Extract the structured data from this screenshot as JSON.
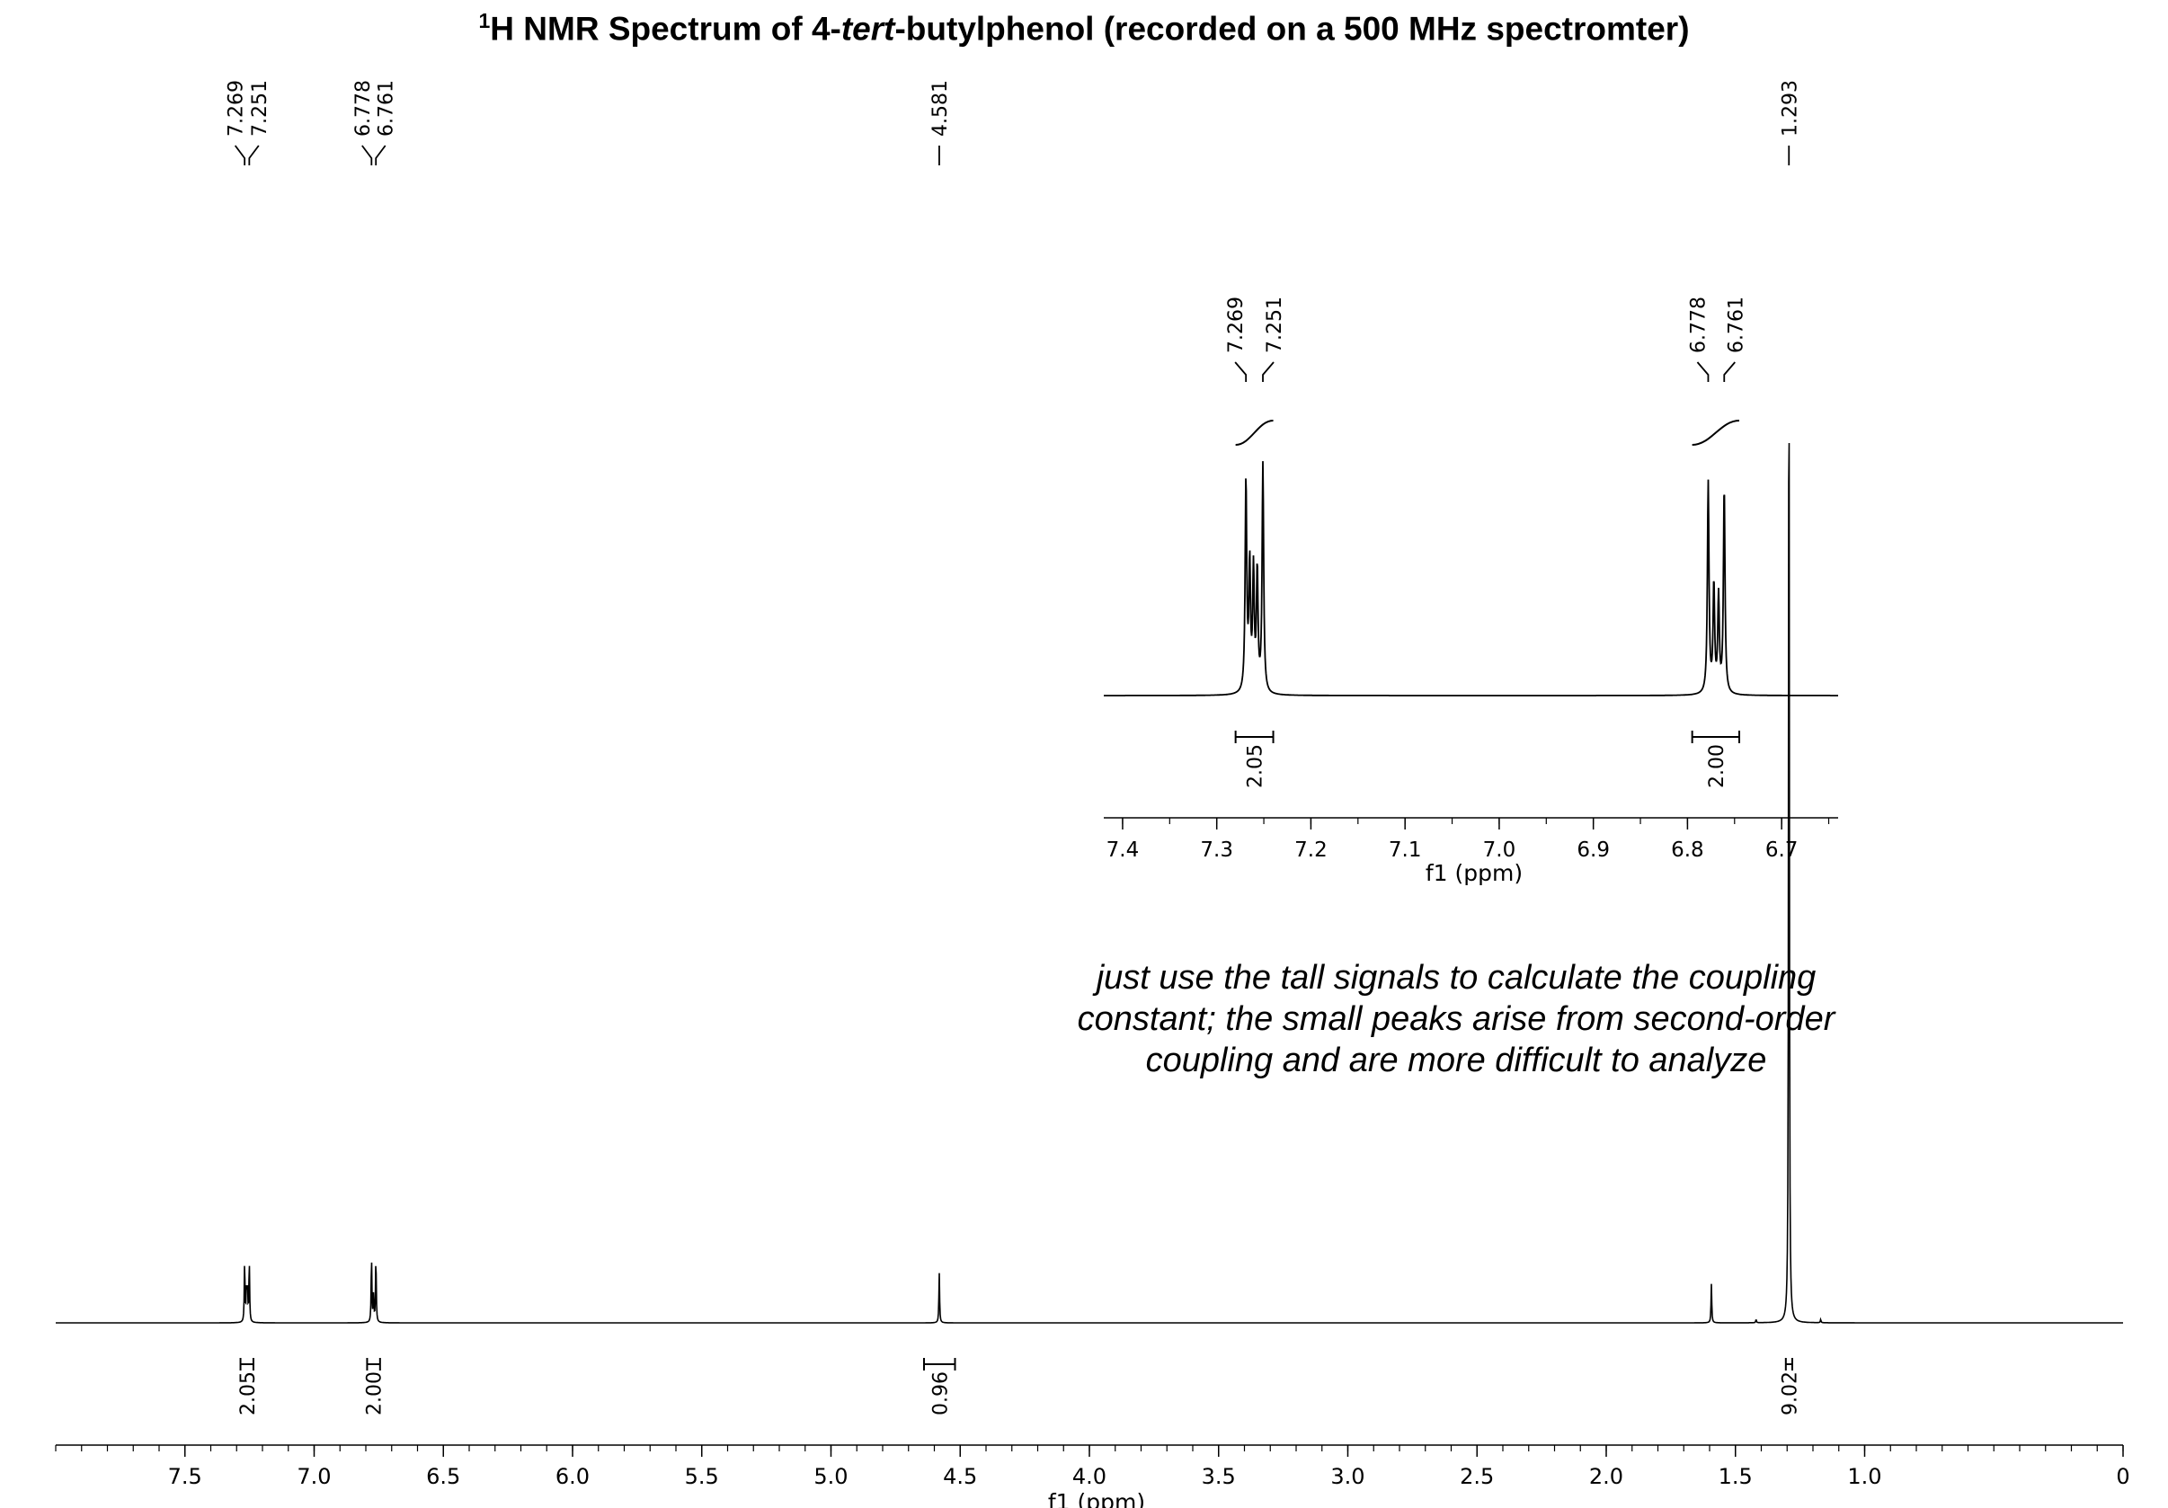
{
  "title": {
    "sup": "1",
    "pre": "H NMR Spectrum of 4-",
    "italic": "tert",
    "post": "-butylphenol (recorded on a 500 MHz spectromter)"
  },
  "note_lines": [
    "just use the tall signals to calculate the coupling",
    "constant; the small peaks arise from second-order",
    "coupling and are more difficult to analyze"
  ],
  "chart_data": [
    {
      "type": "line",
      "role": "main-spectrum",
      "xlabel": "f1 (ppm)",
      "xlim": [
        8.0,
        0.0
      ],
      "x_ticks": [
        {
          "value": 7.5,
          "label": "7.5"
        },
        {
          "value": 7.0,
          "label": "7.0"
        },
        {
          "value": 6.5,
          "label": "6.5"
        },
        {
          "value": 6.0,
          "label": "6.0"
        },
        {
          "value": 5.5,
          "label": "5.5"
        },
        {
          "value": 5.0,
          "label": "5.0"
        },
        {
          "value": 4.5,
          "label": "4.5"
        },
        {
          "value": 4.0,
          "label": "4.0"
        },
        {
          "value": 3.5,
          "label": "3.5"
        },
        {
          "value": 3.0,
          "label": "3.0"
        },
        {
          "value": 2.5,
          "label": "2.5"
        },
        {
          "value": 2.0,
          "label": "2.0"
        },
        {
          "value": 1.5,
          "label": "1.5"
        },
        {
          "value": 1.0,
          "label": "1.0"
        },
        {
          "value": 0.0,
          "label": "0"
        }
      ],
      "peaks": [
        {
          "ppm": 7.269,
          "height": 0.055
        },
        {
          "ppm": 7.251,
          "height": 0.055
        },
        {
          "ppm": 7.262,
          "height": 0.03
        },
        {
          "ppm": 7.258,
          "height": 0.03
        },
        {
          "ppm": 6.778,
          "height": 0.06
        },
        {
          "ppm": 6.761,
          "height": 0.06
        },
        {
          "ppm": 6.77,
          "height": 0.025
        },
        {
          "ppm": 4.581,
          "height": 0.045
        },
        {
          "ppm": 1.593,
          "height": 0.035
        },
        {
          "ppm": 1.42,
          "height": 0.003
        },
        {
          "ppm": 1.293,
          "height": 1.0
        },
        {
          "ppm": 1.17,
          "height": 0.003
        }
      ],
      "peak_labels": [
        {
          "group": [
            {
              "ppm": 7.269,
              "label": "7.269"
            },
            {
              "ppm": 7.251,
              "label": "7.251"
            }
          ]
        },
        {
          "group": [
            {
              "ppm": 6.778,
              "label": "6.778"
            },
            {
              "ppm": 6.761,
              "label": "6.761"
            }
          ]
        },
        {
          "group": [
            {
              "ppm": 4.581,
              "label": "4.581"
            }
          ]
        },
        {
          "group": [
            {
              "ppm": 1.293,
              "label": "1.293"
            }
          ]
        }
      ],
      "integrals": [
        {
          "from": 7.285,
          "to": 7.235,
          "value": "2.05"
        },
        {
          "from": 6.795,
          "to": 6.745,
          "value": "2.00"
        },
        {
          "from": 4.64,
          "to": 4.52,
          "value": "0.96"
        },
        {
          "from": 1.305,
          "to": 1.28,
          "value": "9.02"
        }
      ]
    },
    {
      "type": "line",
      "role": "inset-aromatic-region",
      "xlabel": "f1 (ppm)",
      "xlim": [
        7.42,
        6.64
      ],
      "x_ticks": [
        {
          "value": 7.4,
          "label": "7.4"
        },
        {
          "value": 7.3,
          "label": "7.3"
        },
        {
          "value": 7.2,
          "label": "7.2"
        },
        {
          "value": 7.1,
          "label": "7.1"
        },
        {
          "value": 7.0,
          "label": "7.0"
        },
        {
          "value": 6.9,
          "label": "6.9"
        },
        {
          "value": 6.8,
          "label": "6.8"
        },
        {
          "value": 6.7,
          "label": "6.7"
        }
      ],
      "peaks": [
        {
          "ppm": 7.269,
          "height": 0.88
        },
        {
          "ppm": 7.265,
          "height": 0.52
        },
        {
          "ppm": 7.261,
          "height": 0.5
        },
        {
          "ppm": 7.257,
          "height": 0.5
        },
        {
          "ppm": 7.251,
          "height": 0.95
        },
        {
          "ppm": 6.778,
          "height": 0.88
        },
        {
          "ppm": 6.772,
          "height": 0.45
        },
        {
          "ppm": 6.767,
          "height": 0.4
        },
        {
          "ppm": 6.761,
          "height": 0.86
        }
      ],
      "peak_labels": [
        {
          "group": [
            {
              "ppm": 7.269,
              "label": "7.269"
            },
            {
              "ppm": 7.251,
              "label": "7.251"
            }
          ]
        },
        {
          "group": [
            {
              "ppm": 6.778,
              "label": "6.778"
            },
            {
              "ppm": 6.761,
              "label": "6.761"
            }
          ]
        }
      ],
      "integrals": [
        {
          "from": 7.28,
          "to": 7.24,
          "value": "2.05"
        },
        {
          "from": 6.795,
          "to": 6.745,
          "value": "2.00"
        }
      ]
    }
  ]
}
